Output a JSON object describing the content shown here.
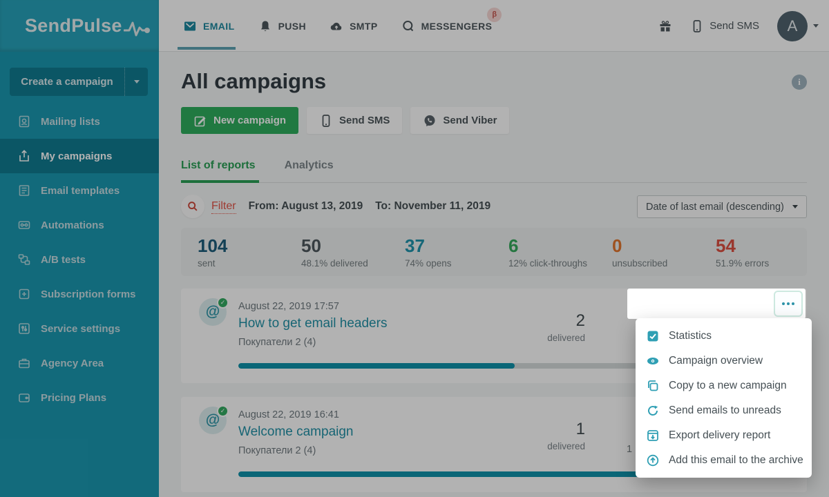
{
  "brand": {
    "name": "SendPulse"
  },
  "topnav": {
    "items": [
      {
        "label": "EMAIL",
        "active": true
      },
      {
        "label": "PUSH",
        "active": false
      },
      {
        "label": "SMTP",
        "active": false
      },
      {
        "label": "MESSENGERS",
        "active": false,
        "badge": "β"
      }
    ],
    "send_sms_label": "Send SMS",
    "avatar_letter": "A"
  },
  "sidebar": {
    "create_button_label": "Create a campaign",
    "items": [
      {
        "label": "Mailing lists"
      },
      {
        "label": "My campaigns",
        "active": true
      },
      {
        "label": "Email templates"
      },
      {
        "label": "Automations"
      },
      {
        "label": "A/B tests"
      },
      {
        "label": "Subscription forms"
      },
      {
        "label": "Service settings"
      },
      {
        "label": "Agency Area"
      },
      {
        "label": "Pricing Plans"
      }
    ]
  },
  "page": {
    "title": "All campaigns",
    "buttons": {
      "new_campaign": "New campaign",
      "send_sms": "Send SMS",
      "send_viber": "Send Viber"
    },
    "tabs": [
      {
        "label": "List of reports",
        "active": true
      },
      {
        "label": "Analytics",
        "active": false
      }
    ],
    "filter": {
      "label": "Filter",
      "from": "From: August 13, 2019",
      "to": "To: November 11, 2019",
      "sort_selected": "Date of last email (descending)"
    }
  },
  "stats": [
    {
      "value": "104",
      "label": "sent",
      "color": "#1d5d7c"
    },
    {
      "value": "50",
      "label": "48.1% delivered",
      "color": "#4e585e"
    },
    {
      "value": "37",
      "label": "74% opens",
      "color": "#2094ad"
    },
    {
      "value": "6",
      "label": "12% click-throughs",
      "color": "#35a95c"
    },
    {
      "value": "0",
      "label": "unsubscribed",
      "color": "#e2762e"
    },
    {
      "value": "54",
      "label": "51.9% errors",
      "color": "#dd4f41"
    }
  ],
  "campaigns": [
    {
      "date": "August 22, 2019 17:57",
      "title": "How to get email headers",
      "list": "Покупатели 2 (4)",
      "stat_value": "2",
      "stat_label": "delivered",
      "progress": 50
    },
    {
      "date": "August 22, 2019 16:41",
      "title": "Welcome campaign",
      "list": "Покупатели 2 (4)",
      "stat_value": "1",
      "stat_label": "delivered",
      "progress": 100,
      "partially_hidden_value": "1"
    }
  ],
  "context_menu": {
    "items": [
      {
        "label": "Statistics"
      },
      {
        "label": "Campaign overview"
      },
      {
        "label": "Copy to a new campaign"
      },
      {
        "label": "Send emails to unreads"
      },
      {
        "label": "Export delivery report"
      },
      {
        "label": "Add this email to the archive"
      }
    ]
  },
  "glyphs": {
    "at": "@",
    "check": "✓",
    "info": "i",
    "beta": "β"
  },
  "colors": {
    "sidebar_teal": "#1b99b1",
    "brand_teal": "#1e89a0",
    "accent_green": "#2fae5e",
    "filter_red": "#e25347",
    "progress_fill": "#0f93ab"
  }
}
